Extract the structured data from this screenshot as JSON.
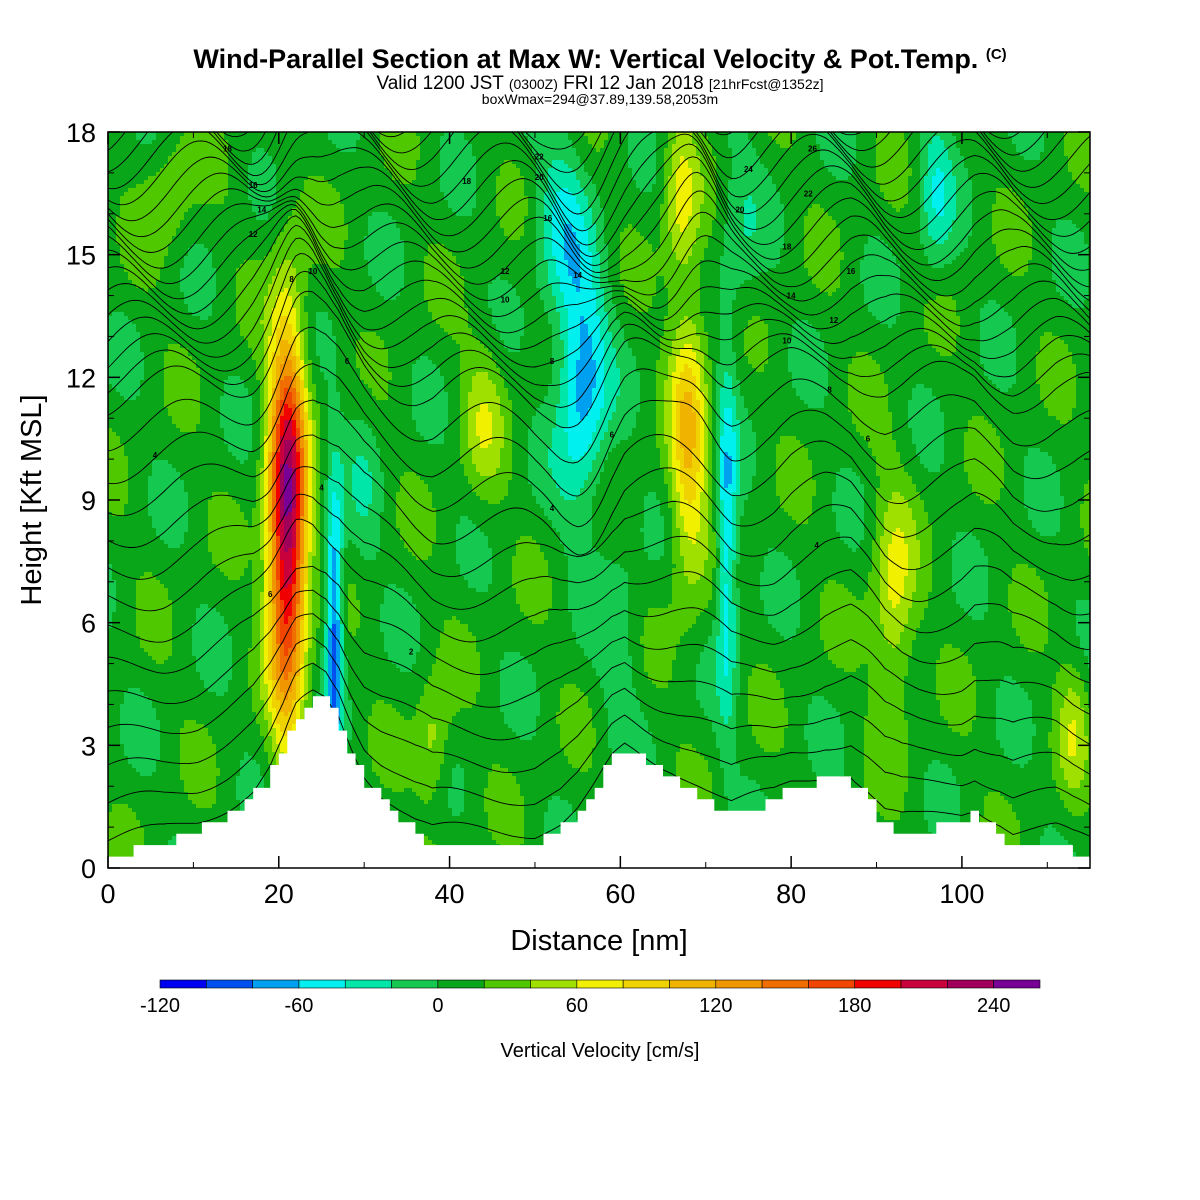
{
  "header": {
    "title": "Wind-Parallel Section at Max W: Vertical Velocity & Pot.Temp.",
    "title_tag": "(C)",
    "valid_prefix": "Valid 1200 JST",
    "valid_utc": "(0300Z)",
    "valid_date": "FRI 12 Jan 2018",
    "forecast": "[21hrFcst@1352z]",
    "boxline": "boxWmax=294@37.89,139.58,2053m"
  },
  "colors": {
    "frame": "#000000",
    "terrain": "#ffffff",
    "contour": "#000000",
    "background_field": "#0aa61a"
  },
  "chart_data": {
    "type": "heatmap",
    "xlabel": "Distance [nm]",
    "ylabel": "Height [Kft MSL]",
    "xlim": [
      0,
      115
    ],
    "ylim": [
      0,
      18
    ],
    "x_ticks": [
      0,
      20,
      40,
      60,
      80,
      100
    ],
    "y_ticks": [
      0,
      3,
      6,
      9,
      12,
      15,
      18
    ],
    "colorbar": {
      "label": "Vertical Velocity [cm/s]",
      "min": -120,
      "max": 260,
      "step": 20,
      "tick_labels": [
        "-120",
        "-60",
        "0",
        "60",
        "120",
        "180",
        "240"
      ],
      "tick_values": [
        -120,
        -60,
        0,
        60,
        120,
        180,
        240
      ],
      "colors": [
        "#0000f0",
        "#0050f0",
        "#00a0f0",
        "#00f0f0",
        "#00e6a8",
        "#14c850",
        "#0aa61a",
        "#50c800",
        "#a0e000",
        "#f0f000",
        "#f0d200",
        "#f0b400",
        "#f09600",
        "#f06e00",
        "#f04600",
        "#f00000",
        "#c8003c",
        "#a0005a",
        "#780096"
      ]
    },
    "background_w": 10,
    "w_features": [
      {
        "x": 21,
        "y": 8.5,
        "rx": 2.2,
        "ry": 4.6,
        "w": 240
      },
      {
        "x": 26.5,
        "y": 6.0,
        "rx": 1.0,
        "ry": 3.5,
        "w": -100
      },
      {
        "x": 55.5,
        "y": 12.0,
        "rx": 3.0,
        "ry": 3.0,
        "w": -80
      },
      {
        "x": 53,
        "y": 15.8,
        "rx": 3.0,
        "ry": 2.2,
        "w": -40
      },
      {
        "x": 68,
        "y": 10.5,
        "rx": 2.2,
        "ry": 3.6,
        "w": 90
      },
      {
        "x": 67,
        "y": 16.5,
        "rx": 2.0,
        "ry": 2.0,
        "w": 55
      },
      {
        "x": 72.5,
        "y": 8.0,
        "rx": 1.2,
        "ry": 4.2,
        "w": -70
      },
      {
        "x": 74,
        "y": 15.5,
        "rx": 2.5,
        "ry": 2.5,
        "w": -20
      },
      {
        "x": 92,
        "y": 6.5,
        "rx": 2.5,
        "ry": 2.8,
        "w": 60
      },
      {
        "x": 97,
        "y": 16.5,
        "rx": 2.0,
        "ry": 2.0,
        "w": -40
      },
      {
        "x": 38,
        "y": 3.0,
        "rx": 2.0,
        "ry": 1.5,
        "w": 45
      },
      {
        "x": 44,
        "y": 11.0,
        "rx": 2.5,
        "ry": 2.0,
        "w": 40
      },
      {
        "x": 30,
        "y": 9.5,
        "rx": 2.0,
        "ry": 2.5,
        "w": -15
      },
      {
        "x": 60,
        "y": 5.5,
        "rx": 2.5,
        "ry": 2.5,
        "w": -20
      },
      {
        "x": 113,
        "y": 3.5,
        "rx": 1.8,
        "ry": 1.8,
        "w": 40
      },
      {
        "x": 7,
        "y": 16.5,
        "rx": 3.0,
        "ry": 1.5,
        "w": 30
      }
    ],
    "terrain": {
      "x": [
        0,
        6.5,
        10.5,
        14,
        17,
        19,
        20.5,
        22,
        24,
        25.5,
        27,
        28.5,
        30,
        32,
        34,
        36,
        38,
        40,
        50,
        53,
        55,
        57,
        59,
        60.5,
        63,
        66,
        70,
        73,
        78,
        80,
        84,
        87,
        89,
        91,
        93,
        95,
        100,
        101.5,
        103,
        104.5,
        106,
        111,
        113,
        115
      ],
      "y": [
        0.3,
        0.6,
        0.9,
        1.3,
        1.7,
        2.2,
        2.8,
        3.6,
        4.1,
        4.1,
        3.7,
        2.9,
        2.2,
        1.7,
        1.3,
        0.9,
        0.6,
        0.6,
        0.6,
        0.9,
        1.3,
        1.9,
        2.6,
        2.9,
        2.6,
        2.3,
        1.7,
        1.3,
        1.6,
        1.9,
        2.2,
        2.2,
        1.7,
        1.1,
        0.9,
        0.9,
        1.1,
        1.3,
        1.1,
        0.9,
        0.6,
        0.6,
        0.4,
        0.3
      ]
    },
    "contour_labels": [
      {
        "text": "18",
        "x": 14,
        "y": 17.6
      },
      {
        "text": "16",
        "x": 17,
        "y": 16.7
      },
      {
        "text": "14",
        "x": 18,
        "y": 16.1
      },
      {
        "text": "12",
        "x": 17,
        "y": 15.5
      },
      {
        "text": "8",
        "x": 21.5,
        "y": 14.4
      },
      {
        "text": "10",
        "x": 24,
        "y": 14.6
      },
      {
        "text": "6",
        "x": 28,
        "y": 12.4
      },
      {
        "text": "4",
        "x": 5.5,
        "y": 10.1
      },
      {
        "text": "4",
        "x": 25,
        "y": 9.3
      },
      {
        "text": "6",
        "x": 19,
        "y": 6.7
      },
      {
        "text": "2",
        "x": 35.5,
        "y": 5.3
      },
      {
        "text": "18",
        "x": 42,
        "y": 16.8
      },
      {
        "text": "22",
        "x": 50.5,
        "y": 17.4
      },
      {
        "text": "20",
        "x": 50.5,
        "y": 16.9
      },
      {
        "text": "16",
        "x": 51.5,
        "y": 15.9
      },
      {
        "text": "14",
        "x": 55,
        "y": 14.5
      },
      {
        "text": "12",
        "x": 46.5,
        "y": 14.6
      },
      {
        "text": "10",
        "x": 46.5,
        "y": 13.9
      },
      {
        "text": "8",
        "x": 52,
        "y": 12.4
      },
      {
        "text": "6",
        "x": 59,
        "y": 10.6
      },
      {
        "text": "4",
        "x": 52,
        "y": 8.8
      },
      {
        "text": "26",
        "x": 82.5,
        "y": 17.6
      },
      {
        "text": "24",
        "x": 75,
        "y": 17.1
      },
      {
        "text": "22",
        "x": 82,
        "y": 16.5
      },
      {
        "text": "20",
        "x": 74,
        "y": 16.1
      },
      {
        "text": "18",
        "x": 79.5,
        "y": 15.2
      },
      {
        "text": "16",
        "x": 87,
        "y": 14.6
      },
      {
        "text": "14",
        "x": 80,
        "y": 14.0
      },
      {
        "text": "12",
        "x": 85,
        "y": 13.4
      },
      {
        "text": "10",
        "x": 79.5,
        "y": 12.9
      },
      {
        "text": "8",
        "x": 84.5,
        "y": 11.7
      },
      {
        "text": "6",
        "x": 89,
        "y": 10.5
      },
      {
        "text": "4",
        "x": 83,
        "y": 7.9
      }
    ]
  }
}
